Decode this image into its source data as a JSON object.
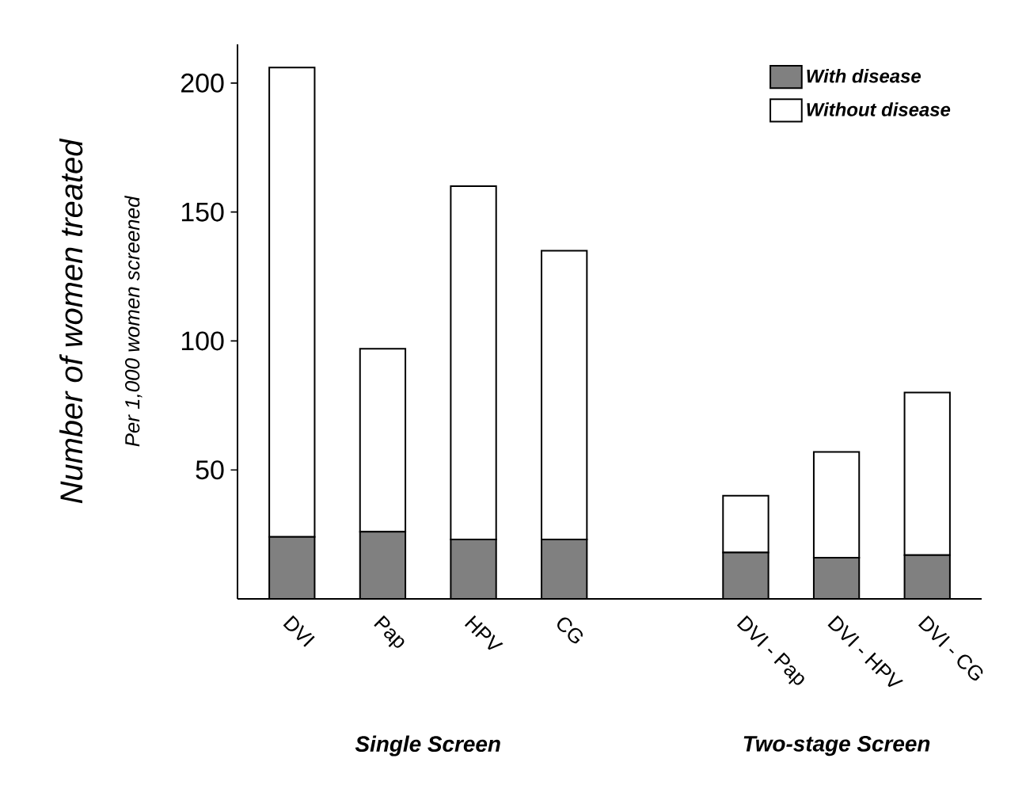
{
  "chart_data": {
    "type": "bar",
    "stacked": true,
    "ylabel": "Number of women treated",
    "categories": [
      "DVI",
      "Pap",
      "HPV",
      "CG",
      null,
      "DVI - Pap",
      "DVI - HPV",
      "DVI - CG"
    ],
    "series": [
      {
        "name": "With disease",
        "color": "#808080",
        "values": [
          24,
          26,
          23,
          23,
          null,
          18,
          16,
          17
        ]
      },
      {
        "name": "Without disease",
        "color": "#ffffff",
        "values": [
          182,
          71,
          137,
          112,
          null,
          22,
          41,
          63
        ]
      }
    ],
    "ylim": [
      0,
      215
    ],
    "yticks": [
      50,
      100,
      150,
      200
    ],
    "legend": "top right",
    "annotations": [
      "Single Screen",
      "Two-stage Screen",
      "Per 1,000 women screened"
    ]
  }
}
